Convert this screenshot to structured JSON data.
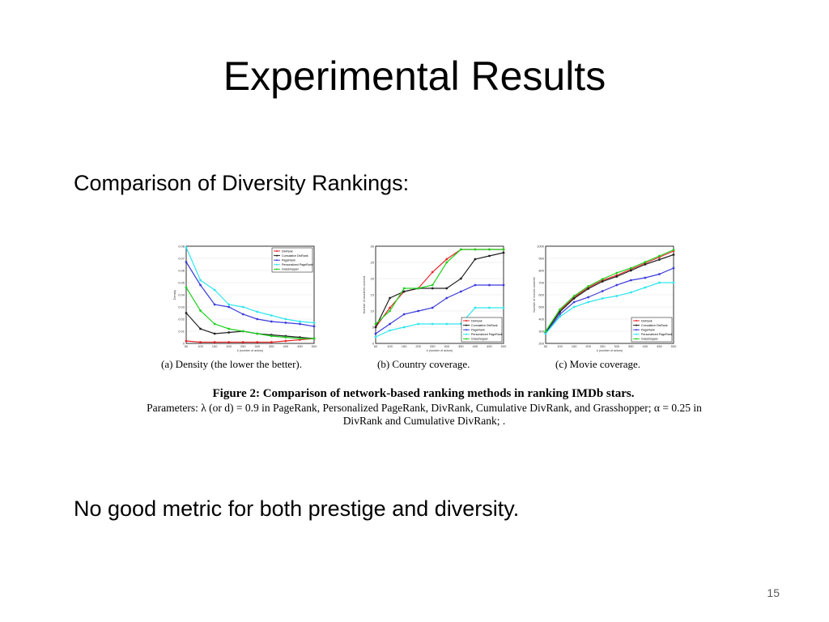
{
  "slide": {
    "title": "Experimental Results",
    "subtitle": "Comparison of Diversity Rankings:",
    "bottom_text": "No good metric for both prestige and diversity.",
    "page_number": "15"
  },
  "figure": {
    "title": "Figure 2: Comparison of network-based ranking methods in ranking IMDb stars.",
    "params_line1": "Parameters: λ (or d) = 0.9 in PageRank, Personalized PageRank, DivRank, Cumulative DivRank, and Grasshopper; α = 0.25 in",
    "params_line2": "DivRank and Cumulative DivRank; ."
  },
  "colors": {
    "DivRank": "#e8262a",
    "Cumulative DivRank": "#222222",
    "PageRank": "#3b3bdc",
    "Personalized PageRank": "#2fe6f0",
    "Grasshopper": "#1fd21f"
  },
  "chart_data": [
    {
      "type": "line",
      "caption": "(a) Density (the lower the better).",
      "xlabel": "k (number of actors)",
      "ylabel": "Density",
      "x": [
        50,
        100,
        150,
        200,
        250,
        300,
        350,
        400,
        450,
        500
      ],
      "xticks": [
        "50",
        "100",
        "150",
        "200",
        "250",
        "300",
        "350",
        "400",
        "450",
        "500"
      ],
      "ylim": [
        0,
        0.08
      ],
      "yticks": [
        "0",
        "0.01",
        "0.02",
        "0.03",
        "0.04",
        "0.05",
        "0.06",
        "0.07",
        "0.08"
      ],
      "legend_position": "top-right",
      "series": [
        {
          "name": "DivRank",
          "values": [
            0.002,
            0.001,
            0.001,
            0.001,
            0.001,
            0.001,
            0.001,
            0.002,
            0.003,
            0.004
          ]
        },
        {
          "name": "Cumulative DivRank",
          "values": [
            0.025,
            0.012,
            0.008,
            0.009,
            0.01,
            0.008,
            0.007,
            0.006,
            0.005,
            0.004
          ]
        },
        {
          "name": "PageRank",
          "values": [
            0.067,
            0.048,
            0.032,
            0.03,
            0.024,
            0.02,
            0.018,
            0.017,
            0.016,
            0.014
          ]
        },
        {
          "name": "Personalized PageRank",
          "values": [
            0.079,
            0.052,
            0.044,
            0.032,
            0.03,
            0.026,
            0.023,
            0.02,
            0.018,
            0.017
          ]
        },
        {
          "name": "Grasshopper",
          "values": [
            0.046,
            0.027,
            0.016,
            0.012,
            0.01,
            0.008,
            0.006,
            0.005,
            0.004,
            0.004
          ]
        }
      ]
    },
    {
      "type": "line",
      "caption": "(b) Country coverage.",
      "xlabel": "k (number of actors)",
      "ylabel": "Number of countries covered",
      "x": [
        50,
        100,
        150,
        200,
        250,
        300,
        350,
        400,
        450,
        500
      ],
      "xticks": [
        "50",
        "100",
        "150",
        "200",
        "250",
        "300",
        "350",
        "400",
        "450",
        "500"
      ],
      "ylim": [
        0,
        30
      ],
      "yticks": [
        "0",
        "5",
        "10",
        "15",
        "20",
        "25",
        "30"
      ],
      "legend_position": "bottom-right",
      "series": [
        {
          "name": "DivRank",
          "values": [
            5,
            11,
            16,
            17,
            22,
            26,
            29,
            29,
            29,
            29
          ]
        },
        {
          "name": "Cumulative DivRank",
          "values": [
            5,
            14,
            16,
            17,
            17,
            17,
            20,
            26,
            27,
            28
          ]
        },
        {
          "name": "PageRank",
          "values": [
            3,
            6,
            9,
            10,
            11,
            14,
            16,
            18,
            18,
            18
          ]
        },
        {
          "name": "Personalized PageRank",
          "values": [
            2,
            4,
            5,
            6,
            6,
            6,
            6,
            11,
            11,
            11
          ]
        },
        {
          "name": "Grasshopper",
          "values": [
            6,
            10,
            17,
            17,
            18,
            25,
            29,
            29,
            29,
            29
          ]
        }
      ]
    },
    {
      "type": "line",
      "caption": "(c) Movie coverage.",
      "xlabel": "k (number of actors)",
      "ylabel": "Number of movies covered",
      "x": [
        50,
        100,
        150,
        200,
        250,
        300,
        350,
        400,
        450,
        500
      ],
      "xticks": [
        "50",
        "100",
        "150",
        "200",
        "250",
        "300",
        "350",
        "400",
        "450",
        "500"
      ],
      "ylim": [
        200,
        1000
      ],
      "yticks": [
        "200",
        "300",
        "400",
        "500",
        "600",
        "700",
        "800",
        "900",
        "1000"
      ],
      "legend_position": "bottom-right",
      "series": [
        {
          "name": "DivRank",
          "values": [
            290,
            470,
            580,
            660,
            720,
            760,
            810,
            860,
            910,
            960
          ]
        },
        {
          "name": "Cumulative DivRank",
          "values": [
            290,
            460,
            570,
            650,
            710,
            750,
            800,
            850,
            890,
            930
          ]
        },
        {
          "name": "PageRank",
          "values": [
            280,
            440,
            540,
            580,
            630,
            680,
            720,
            740,
            770,
            820
          ]
        },
        {
          "name": "Personalized PageRank",
          "values": [
            280,
            420,
            500,
            540,
            570,
            590,
            620,
            660,
            700,
            700
          ]
        },
        {
          "name": "Grasshopper",
          "values": [
            300,
            480,
            590,
            670,
            730,
            780,
            820,
            870,
            920,
            970
          ]
        }
      ]
    }
  ]
}
